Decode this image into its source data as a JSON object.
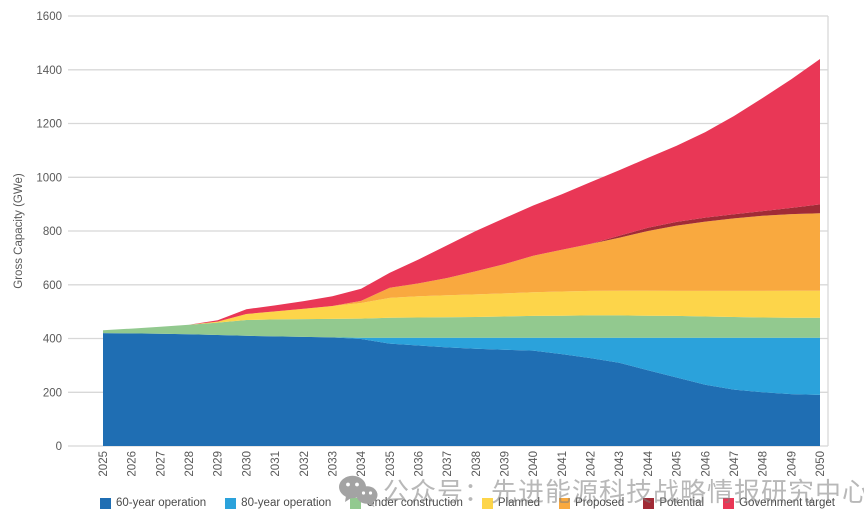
{
  "chart_data": {
    "type": "area",
    "stacked": true,
    "title": "",
    "xlabel": "",
    "ylabel": "Gross Capacity (GWe)",
    "ylim": [
      0,
      1600
    ],
    "y_ticks": [
      0,
      200,
      400,
      600,
      800,
      1000,
      1200,
      1400,
      1600
    ],
    "grid": true,
    "legend_position": "bottom",
    "categories": [
      "2025",
      "2026",
      "2027",
      "2028",
      "2029",
      "2030",
      "2031",
      "2032",
      "2033",
      "2034",
      "2035",
      "2036",
      "2037",
      "2038",
      "2039",
      "2040",
      "2041",
      "2042",
      "2043",
      "2044",
      "2045",
      "2046",
      "2047",
      "2048",
      "2049",
      "2050"
    ],
    "series": [
      {
        "name": "60-year operation",
        "color": "#1F6EB3",
        "values": [
          420,
          419,
          418,
          416,
          413,
          410,
          408,
          406,
          404,
          398,
          381,
          374,
          367,
          362,
          358,
          355,
          342,
          327,
          310,
          282,
          255,
          228,
          210,
          200,
          193,
          190
        ]
      },
      {
        "name": "80-year operation",
        "color": "#2BA2DB",
        "values": [
          0,
          0,
          0,
          0,
          0,
          0,
          0,
          0,
          0,
          5,
          22,
          29,
          36,
          41,
          45,
          48,
          61,
          76,
          93,
          121,
          148,
          175,
          193,
          203,
          210,
          213
        ]
      },
      {
        "name": "Under construction",
        "color": "#92C98F",
        "values": [
          11,
          18,
          26,
          35,
          46,
          59,
          63,
          66,
          69,
          71,
          74,
          75,
          76,
          77,
          79,
          81,
          82,
          83,
          83,
          82,
          81,
          79,
          77,
          75,
          74,
          74
        ]
      },
      {
        "name": "Planned",
        "color": "#FDD54A",
        "values": [
          0,
          0,
          0,
          0,
          4,
          22,
          30,
          39,
          48,
          58,
          74,
          79,
          82,
          84,
          86,
          88,
          90,
          91,
          92,
          93,
          93,
          95,
          97,
          99,
          101,
          101
        ]
      },
      {
        "name": "Proposed",
        "color": "#F9A93F",
        "values": [
          0,
          0,
          0,
          0,
          0,
          0,
          0,
          0,
          0,
          8,
          38,
          48,
          64,
          86,
          109,
          136,
          155,
          175,
          197,
          222,
          243,
          258,
          270,
          280,
          285,
          288
        ]
      },
      {
        "name": "Potential",
        "color": "#A12B36",
        "values": [
          0,
          0,
          0,
          0,
          0,
          0,
          0,
          0,
          0,
          0,
          0,
          0,
          0,
          0,
          0,
          0,
          0,
          0,
          7,
          12,
          14,
          15,
          15,
          17,
          23,
          33
        ]
      },
      {
        "name": "Government target",
        "color": "#E93756",
        "values": [
          0,
          0,
          0,
          0,
          5,
          18,
          22,
          28,
          36,
          45,
          56,
          89,
          122,
          150,
          171,
          187,
          207,
          230,
          244,
          260,
          283,
          318,
          366,
          421,
          479,
          541
        ]
      }
    ]
  },
  "watermark": {
    "text": "公众号：先进能源科技战略情报研究中心",
    "icon": "wechat-icon",
    "color": "#b0b0b0"
  },
  "style": {
    "gridline_color": "#d8d8d8",
    "axis_text_color": "#595959",
    "legend_text_color": "#4a4a4a"
  }
}
